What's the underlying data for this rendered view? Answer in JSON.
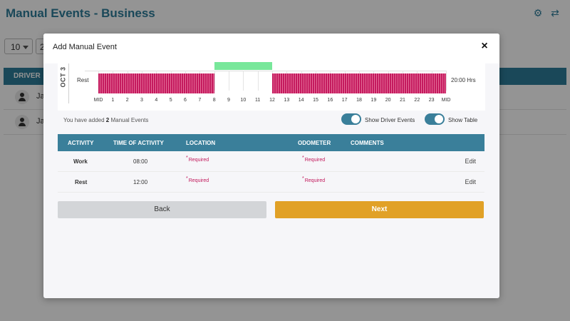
{
  "page": {
    "title": "Manual Events - Business",
    "per_page": "10",
    "second_select": "2",
    "table_header_driver": "DRIVER",
    "driver_rows": [
      "Ja",
      "Ja"
    ]
  },
  "modal": {
    "title": "Add Manual Event",
    "close_label": "×",
    "chart": {
      "date_label": "OCT 3",
      "row_label": "Rest",
      "total_label": "20:00 Hrs",
      "hour_labels": [
        "MID",
        "1",
        "2",
        "3",
        "4",
        "5",
        "6",
        "7",
        "8",
        "9",
        "10",
        "11",
        "12",
        "13",
        "14",
        "15",
        "16",
        "17",
        "18",
        "19",
        "20",
        "21",
        "22",
        "23",
        "MID"
      ],
      "segments": [
        {
          "status": "Rest",
          "start": 0,
          "end": 8,
          "color": "#c41a5e"
        },
        {
          "status": "Work",
          "start": 8,
          "end": 12,
          "color": "#78e79a"
        },
        {
          "status": "Rest",
          "start": 12,
          "end": 24,
          "color": "#c41a5e"
        }
      ]
    },
    "info": {
      "prefix": "You have added",
      "count": "2",
      "suffix": "Manual Events"
    },
    "toggles": {
      "driver_events_label": "Show Driver Events",
      "table_label": "Show Table"
    },
    "table": {
      "headers": {
        "activity": "ACTIVITY",
        "time": "TIME OF ACTIVITY",
        "location": "LOCATION",
        "odometer": "ODOMETER",
        "comments": "COMMENTS"
      },
      "rows": [
        {
          "activity": "Work",
          "time": "08:00",
          "location": "Required",
          "odometer": "Required",
          "action": "Edit"
        },
        {
          "activity": "Rest",
          "time": "12:00",
          "location": "Required",
          "odometer": "Required",
          "action": "Edit"
        }
      ]
    },
    "buttons": {
      "back": "Back",
      "next": "Next"
    }
  },
  "colors": {
    "accent": "#3a7f9a",
    "rest": "#c41a5e",
    "work": "#78e79a",
    "next_button": "#e1a127",
    "required": "#c2185b"
  },
  "icons": [
    "gear-icon",
    "swap-icon",
    "user-avatar-icon",
    "close-icon"
  ]
}
